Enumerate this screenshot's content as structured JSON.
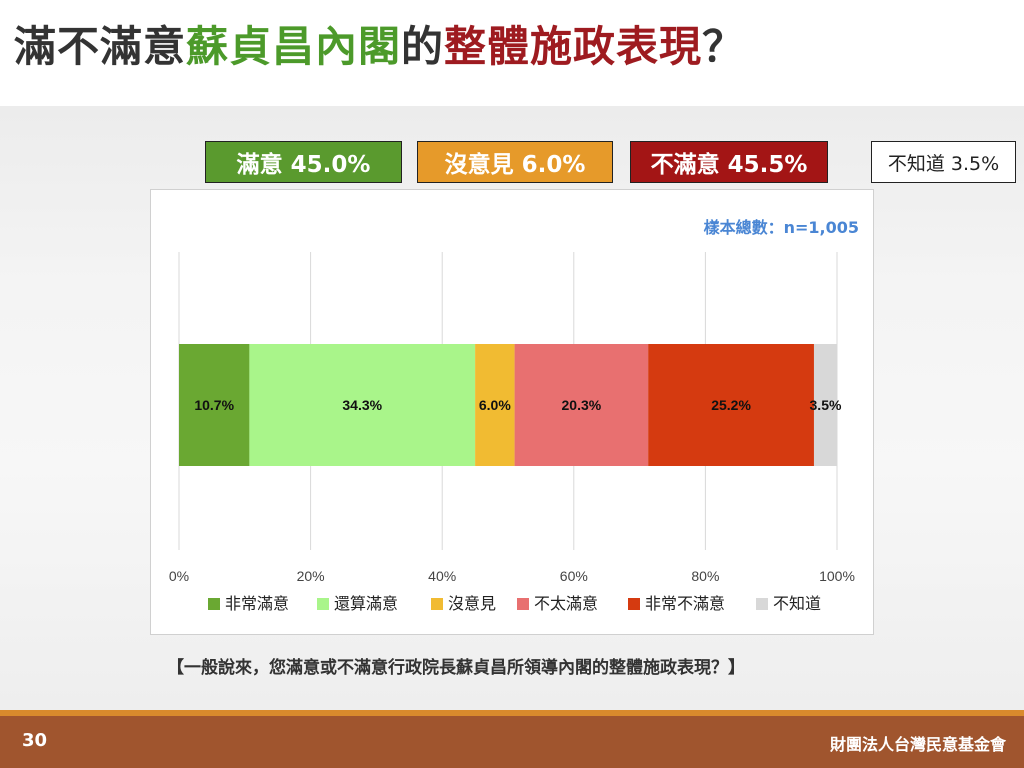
{
  "title": {
    "part1": "滿不滿意",
    "part2": "蘇貞昌內閣",
    "part3": "的",
    "part4": "整體施政表現",
    "part5": "？"
  },
  "summary": {
    "satisfied": "滿意 45.0%",
    "neutral": "沒意見 6.0%",
    "unsatisfied": "不滿意 45.5%",
    "unknown": "不知道 3.5%"
  },
  "colors": {
    "satisfied_box": "#5a9a2e",
    "neutral_box": "#e69a2a",
    "unsatisfied_box": "#a31515",
    "title_green": "#4c9a2a",
    "title_red": "#9e1b20",
    "sample_blue": "#4a86d4",
    "footer": "#a0552e"
  },
  "sample_size": "樣本總數：n=1,005",
  "question": "【一般說來，您滿意或不滿意行政院長蘇貞昌所領導內閣的整體施政表現？】",
  "footer": {
    "page": "30",
    "org": "財團法人台灣民意基金會"
  },
  "chart_data": {
    "type": "bar",
    "orientation": "horizontal",
    "stacked": true,
    "title": "",
    "xlabel": "",
    "ylabel": "",
    "xlim": [
      0,
      100
    ],
    "x_ticks": [
      "0%",
      "20%",
      "40%",
      "60%",
      "80%",
      "100%"
    ],
    "grid": true,
    "legend_position": "bottom",
    "series": [
      {
        "name": "非常滿意",
        "value": 10.7,
        "label": "10.7%",
        "color": "#6aa832"
      },
      {
        "name": "還算滿意",
        "value": 34.3,
        "label": "34.3%",
        "color": "#a9f58a"
      },
      {
        "name": "沒意見",
        "value": 6.0,
        "label": "6.0%",
        "color": "#f1bb32"
      },
      {
        "name": "不太滿意",
        "value": 20.3,
        "label": "20.3%",
        "color": "#e87070"
      },
      {
        "name": "非常不滿意",
        "value": 25.2,
        "label": "25.2%",
        "color": "#d53a10"
      },
      {
        "name": "不知道",
        "value": 3.5,
        "label": "3.5%",
        "color": "#d8d8d8"
      }
    ]
  }
}
